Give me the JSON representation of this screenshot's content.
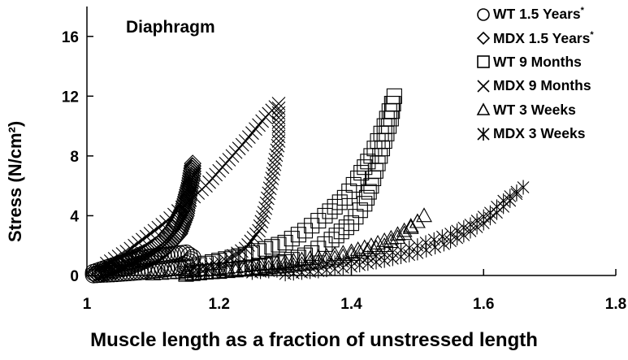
{
  "chart_data": {
    "type": "scatter",
    "title": "Diaphragm",
    "xlabel": "Muscle length as a fraction of unstressed length",
    "ylabel": "Stress (N/cm²)",
    "xlim": [
      1.0,
      1.8
    ],
    "ylim": [
      0,
      18
    ],
    "xticks": [
      "1",
      "1.2",
      "1.4",
      "1.6",
      "1.8"
    ],
    "yticks": [
      "0",
      "4",
      "8",
      "12",
      "16"
    ],
    "legend_position": "top-right",
    "grid": false,
    "series": [
      {
        "name": "WT 1.5 Years",
        "asterisk": "*",
        "marker": "circle",
        "x": [
          1.01,
          1.03,
          1.05,
          1.07,
          1.09,
          1.11,
          1.13,
          1.15,
          1.16,
          1.155,
          1.14,
          1.12,
          1.1,
          1.08,
          1.06,
          1.04,
          1.02,
          1.01
        ],
        "y": [
          0.2,
          0.5,
          0.8,
          1.0,
          1.2,
          1.3,
          1.4,
          1.5,
          1.2,
          0.9,
          0.6,
          0.45,
          0.35,
          0.25,
          0.18,
          0.12,
          0.08,
          0.05
        ]
      },
      {
        "name": "MDX 1.5 Years",
        "asterisk": "*",
        "marker": "diamond",
        "x": [
          1.01,
          1.03,
          1.05,
          1.07,
          1.09,
          1.11,
          1.13,
          1.145,
          1.155,
          1.16,
          1.16,
          1.155,
          1.15,
          1.14,
          1.12,
          1.1,
          1.08,
          1.06,
          1.04,
          1.02
        ],
        "y": [
          0.1,
          0.4,
          0.8,
          1.2,
          1.6,
          2.2,
          3.2,
          4.5,
          6.2,
          7.5,
          6.8,
          5.5,
          4.0,
          2.8,
          1.8,
          1.2,
          0.8,
          0.5,
          0.3,
          0.1
        ]
      },
      {
        "name": "WT 9 Months",
        "marker": "square",
        "x": [
          1.15,
          1.2,
          1.25,
          1.3,
          1.33,
          1.36,
          1.39,
          1.41,
          1.43,
          1.45,
          1.465,
          1.46,
          1.45,
          1.44,
          1.43,
          1.42,
          1.4,
          1.37,
          1.34,
          1.3,
          1.26,
          1.22,
          1.18,
          1.15
        ],
        "y": [
          0.5,
          1.0,
          1.5,
          2.2,
          3.0,
          4.0,
          5.2,
          6.5,
          8.0,
          10.0,
          12.0,
          10.5,
          9.0,
          7.5,
          6.0,
          4.8,
          3.5,
          2.4,
          1.5,
          0.9,
          0.6,
          0.4,
          0.25,
          0.1
        ]
      },
      {
        "name": "MDX 9 Months",
        "marker": "x",
        "x": [
          1.03,
          1.06,
          1.09,
          1.12,
          1.15,
          1.18,
          1.21,
          1.24,
          1.27,
          1.29,
          1.29,
          1.28,
          1.27,
          1.26,
          1.24,
          1.21,
          1.18,
          1.15
        ],
        "y": [
          0.8,
          1.6,
          2.6,
          3.6,
          4.8,
          6.0,
          7.5,
          9.0,
          10.6,
          11.5,
          9.0,
          6.5,
          4.5,
          3.0,
          1.8,
          1.0,
          0.5,
          0.2
        ]
      },
      {
        "name": "WT 3 Weeks",
        "marker": "triangle",
        "x": [
          1.1,
          1.15,
          1.2,
          1.25,
          1.3,
          1.35,
          1.4,
          1.43,
          1.46,
          1.48,
          1.5,
          1.51,
          1.48,
          1.45,
          1.4,
          1.35,
          1.3,
          1.25,
          1.2,
          1.15
        ],
        "y": [
          0.1,
          0.25,
          0.45,
          0.7,
          0.9,
          1.2,
          1.6,
          2.0,
          2.5,
          3.0,
          3.6,
          4.0,
          2.8,
          2.0,
          1.4,
          0.9,
          0.6,
          0.4,
          0.2,
          0.1
        ]
      },
      {
        "name": "MDX 3 Weeks",
        "marker": "asterisk",
        "x": [
          1.25,
          1.3,
          1.35,
          1.4,
          1.45,
          1.5,
          1.55,
          1.58,
          1.61,
          1.63,
          1.65,
          1.66,
          1.64,
          1.62,
          1.6,
          1.57,
          1.54,
          1.5,
          1.45,
          1.4,
          1.35,
          1.3
        ],
        "y": [
          0.2,
          0.4,
          0.7,
          1.0,
          1.4,
          2.0,
          2.8,
          3.4,
          4.2,
          5.0,
          5.6,
          5.9,
          5.0,
          4.2,
          3.5,
          2.7,
          2.1,
          1.5,
          1.0,
          0.6,
          0.3,
          0.1
        ]
      }
    ]
  }
}
